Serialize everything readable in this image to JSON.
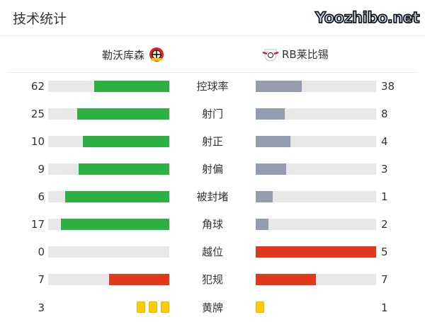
{
  "title": "技术统计",
  "home": {
    "name": "勒沃库森",
    "logo": "bayer-leverkusen-crest"
  },
  "away": {
    "name": "RB莱比锡",
    "logo": "rb-leipzig-crest"
  },
  "colors": {
    "green": "#2db143",
    "gray": "#939cad",
    "red": "#e0381b",
    "track": "#e8e8e8",
    "card": "#ffcc00"
  },
  "stats": [
    {
      "label": "控球率",
      "home": "62",
      "away": "38",
      "home_frac": 0.62,
      "away_frac": 0.38,
      "home_color": "#2db143",
      "away_color": "#939cad"
    },
    {
      "label": "射门",
      "home": "25",
      "away": "8",
      "home_frac": 0.758,
      "away_frac": 0.242,
      "home_color": "#2db143",
      "away_color": "#939cad"
    },
    {
      "label": "射正",
      "home": "10",
      "away": "4",
      "home_frac": 0.714,
      "away_frac": 0.286,
      "home_color": "#2db143",
      "away_color": "#939cad"
    },
    {
      "label": "射偏",
      "home": "9",
      "away": "3",
      "home_frac": 0.75,
      "away_frac": 0.25,
      "home_color": "#2db143",
      "away_color": "#939cad"
    },
    {
      "label": "被封堵",
      "home": "6",
      "away": "1",
      "home_frac": 0.857,
      "away_frac": 0.143,
      "home_color": "#2db143",
      "away_color": "#939cad"
    },
    {
      "label": "角球",
      "home": "17",
      "away": "2",
      "home_frac": 0.895,
      "away_frac": 0.105,
      "home_color": "#2db143",
      "away_color": "#939cad"
    },
    {
      "label": "越位",
      "home": "0",
      "away": "5",
      "home_frac": 0,
      "away_frac": 1,
      "home_color": "#e0381b",
      "away_color": "#e0381b"
    },
    {
      "label": "犯规",
      "home": "7",
      "away": "7",
      "home_frac": 0.5,
      "away_frac": 0.5,
      "home_color": "#e0381b",
      "away_color": "#e0381b"
    }
  ],
  "yellow": {
    "label": "黄牌",
    "home": "3",
    "away": "1",
    "home_count": 3,
    "away_count": 1
  },
  "watermark": "Yoozhibo.net"
}
